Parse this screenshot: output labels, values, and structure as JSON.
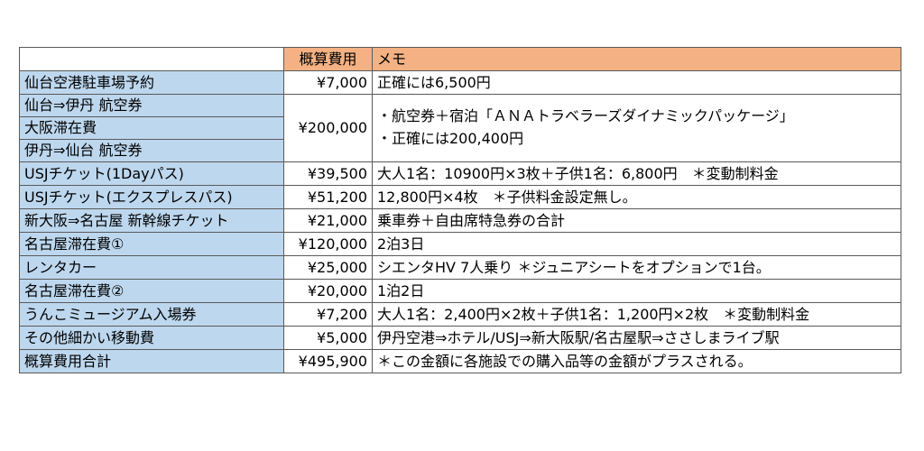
{
  "header": {
    "cost": "概算費用",
    "memo": "メモ"
  },
  "rows": {
    "r1": {
      "label": "仙台空港駐車場予約",
      "cost": "¥7,000",
      "memo": "正確には6,500円"
    },
    "r2": {
      "label": "仙台⇒伊丹 航空券"
    },
    "r3": {
      "label": "大阪滞在費"
    },
    "r4": {
      "label": "伊丹⇒仙台 航空券"
    },
    "merged": {
      "cost": "¥200,000",
      "memo_line1": "・航空券＋宿泊「ＡＮＡトラベラーズダイナミックパッケージ」",
      "memo_line2": "・正確には200,400円"
    },
    "r5": {
      "label": "USJチケット(1Dayパス)",
      "cost": "¥39,500",
      "memo": "大人1名：10900円×3枚＋子供1名：6,800円　＊変動制料金"
    },
    "r6": {
      "label": "USJチケット(エクスプレスパス)",
      "cost": "¥51,200",
      "memo": "12,800円×4枚　＊子供料金設定無し。"
    },
    "r7": {
      "label": "新大阪⇒名古屋 新幹線チケット",
      "cost": "¥21,000",
      "memo": "乗車券＋自由席特急券の合計"
    },
    "r8": {
      "label": "名古屋滞在費①",
      "cost": "¥120,000",
      "memo": "2泊3日"
    },
    "r9": {
      "label": "レンタカー",
      "cost": "¥25,000",
      "memo": "シエンタHV 7人乗り ＊ジュニアシートをオプションで1台。"
    },
    "r10": {
      "label": "名古屋滞在費②",
      "cost": "¥20,000",
      "memo": "1泊2日"
    },
    "r11": {
      "label": "うんこミュージアム入場券",
      "cost": "¥7,200",
      "memo": "大人1名：2,400円×2枚＋子供1名：1,200円×2枚　＊変動制料金"
    },
    "r12": {
      "label": "その他細かい移動費",
      "cost": "¥5,000",
      "memo": "伊丹空港⇒ホテル/USJ⇒新大阪駅/名古屋駅⇒ささしまライブ駅"
    },
    "r13": {
      "label": "概算費用合計",
      "cost": "¥495,900",
      "memo": "＊この金額に各施設での購入品等の金額がプラスされる。"
    }
  }
}
